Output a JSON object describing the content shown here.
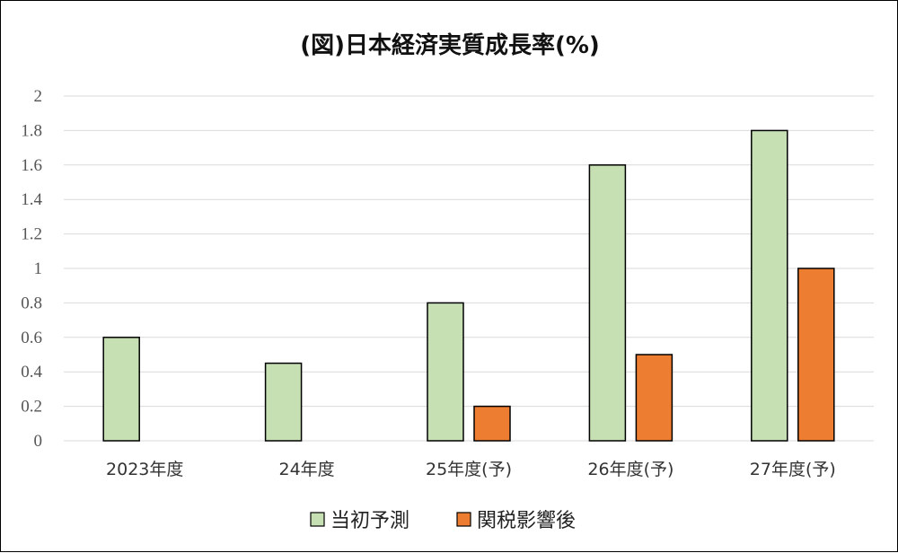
{
  "chart_data": {
    "type": "bar",
    "title": "(図)日本経済実質成長率(%)",
    "categories": [
      "2023年度",
      "24年度",
      "25年度(予)",
      "26年度(予)",
      "27年度(予)"
    ],
    "series": [
      {
        "name": "当初予測",
        "values": [
          0.6,
          0.45,
          0.8,
          1.6,
          1.8
        ],
        "color": "#c6e0b4"
      },
      {
        "name": "関税影響後",
        "values": [
          null,
          null,
          0.2,
          0.5,
          1.0
        ],
        "color": "#ed7d31"
      }
    ],
    "yticks": [
      "0",
      "0.2",
      "0.4",
      "0.6",
      "0.8",
      "1",
      "1.2",
      "1.4",
      "1.6",
      "1.8",
      "2"
    ],
    "ylim": [
      0,
      2
    ],
    "grid": true,
    "legend_position": "bottom",
    "colors": {
      "gridline": "#d9d9d9",
      "bar_outline": "#000000"
    }
  }
}
